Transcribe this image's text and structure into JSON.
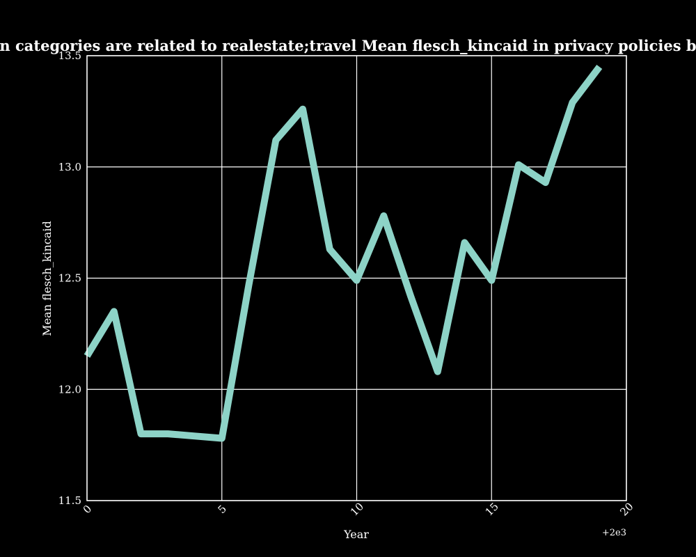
{
  "chart_data": {
    "type": "line",
    "title": "when categories are related to realestate;travel Mean flesch_kincaid in privacy policies by Year",
    "xlabel": "Year",
    "ylabel": "Mean flesch_kincaid",
    "x_offset_label": "+2e3",
    "xlim": [
      0,
      20
    ],
    "ylim": [
      11.5,
      13.5
    ],
    "xticks": [
      0,
      5,
      10,
      15,
      20
    ],
    "xtick_labels": [
      "0",
      "5",
      "10",
      "15",
      "20"
    ],
    "yticks": [
      11.5,
      12.0,
      12.5,
      13.0,
      13.5
    ],
    "ytick_labels": [
      "11.5",
      "12.0",
      "12.5",
      "13.0",
      "13.5"
    ],
    "grid": true,
    "colors": {
      "background": "#000000",
      "line": "#8dd3c7",
      "axes": "#ffffff"
    },
    "series": [
      {
        "x": [
          0,
          1,
          2,
          3,
          4,
          5,
          6,
          7,
          8,
          9,
          10,
          11,
          12,
          13,
          14,
          15,
          16,
          17,
          18,
          19
        ],
        "values": [
          12.15,
          12.35,
          11.8,
          11.8,
          11.79,
          11.78,
          12.47,
          13.12,
          13.26,
          12.63,
          12.49,
          12.78,
          12.42,
          12.08,
          12.66,
          12.49,
          13.01,
          12.93,
          13.29,
          13.45
        ]
      }
    ]
  }
}
